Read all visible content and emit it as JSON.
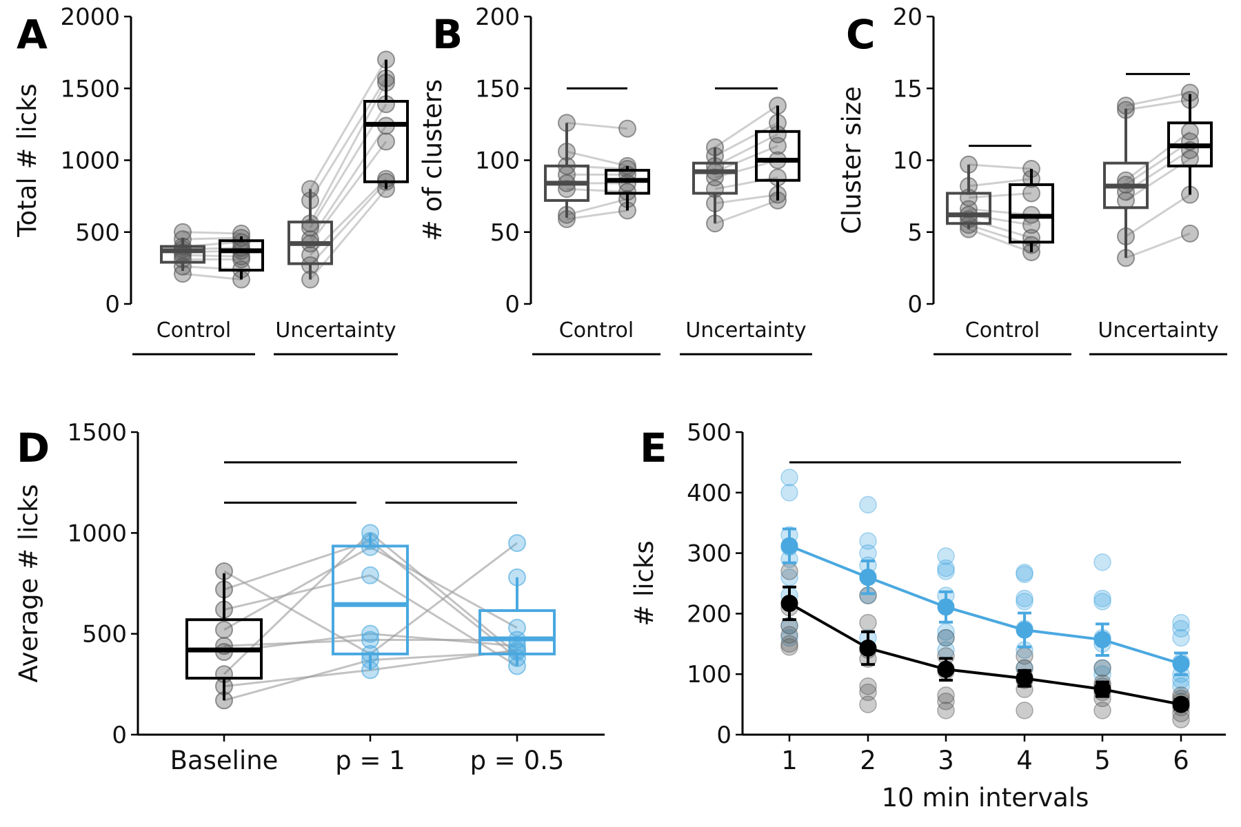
{
  "colors": {
    "control_box": "#4a4a4a",
    "uncertainty_box": "#000000",
    "blue": "#4aa8e0",
    "gray_point": "#555555",
    "pair_line": "#bbbbbb"
  },
  "chart_data": [
    {
      "id": "A",
      "type": "box-paired",
      "panel_letter": "A",
      "ylabel": "Total # licks",
      "ylim": [
        0,
        2000
      ],
      "yticks": [
        0,
        500,
        1000,
        1500,
        2000
      ],
      "groups": [
        {
          "label": "Control",
          "boxes": [
            {
              "q1": 290,
              "median": 370,
              "q3": 400,
              "whisker_low": 230,
              "whisker_high": 460,
              "points": [
                210,
                260,
                310,
                340,
                360,
                380,
                400,
                450,
                500
              ]
            },
            {
              "q1": 235,
              "median": 370,
              "q3": 440,
              "whisker_low": 170,
              "whisker_high": 470,
              "points": [
                170,
                240,
                310,
                330,
                370,
                390,
                430,
                460,
                490
              ]
            }
          ]
        },
        {
          "label": "Uncertainty",
          "boxes": [
            {
              "q1": 280,
              "median": 420,
              "q3": 570,
              "whisker_low": 170,
              "whisker_high": 800,
              "points": [
                170,
                270,
                340,
                420,
                450,
                530,
                560,
                720,
                800
              ]
            },
            {
              "q1": 850,
              "median": 1250,
              "q3": 1410,
              "whisker_low": 800,
              "whisker_high": 1700,
              "points": [
                800,
                850,
                870,
                1130,
                1240,
                1390,
                1540,
                1570,
                1700
              ]
            }
          ]
        }
      ],
      "sig_bars": []
    },
    {
      "id": "B",
      "type": "box-paired",
      "panel_letter": "B",
      "ylabel": "# of clusters",
      "ylim": [
        0,
        200
      ],
      "yticks": [
        0,
        50,
        100,
        150,
        200
      ],
      "groups": [
        {
          "label": "Control",
          "boxes": [
            {
              "q1": 72,
              "median": 84,
              "q3": 96,
              "whisker_low": 60,
              "whisker_high": 126,
              "points": [
                59,
                62,
                80,
                84,
                90,
                96,
                106,
                126
              ]
            },
            {
              "q1": 77,
              "median": 86,
              "q3": 93,
              "whisker_low": 65,
              "whisker_high": 96,
              "points": [
                65,
                73,
                78,
                84,
                90,
                94,
                96,
                122
              ]
            }
          ]
        },
        {
          "label": "Uncertainty",
          "boxes": [
            {
              "q1": 77,
              "median": 92,
              "q3": 98,
              "whisker_low": 56,
              "whisker_high": 109,
              "points": [
                56,
                70,
                80,
                88,
                92,
                96,
                103,
                109
              ]
            },
            {
              "q1": 86,
              "median": 100,
              "q3": 120,
              "whisker_low": 72,
              "whisker_high": 138,
              "points": [
                72,
                76,
                88,
                100,
                110,
                118,
                126,
                138
              ]
            }
          ]
        }
      ],
      "sig_bars": [
        {
          "group": 0,
          "y": 150
        },
        {
          "group": 1,
          "y": 150
        }
      ]
    },
    {
      "id": "C",
      "type": "box-paired",
      "panel_letter": "C",
      "ylabel": "Cluster size",
      "ylim": [
        0,
        20
      ],
      "yticks": [
        0,
        5,
        10,
        15,
        20
      ],
      "groups": [
        {
          "label": "Control",
          "boxes": [
            {
              "q1": 5.6,
              "median": 6.2,
              "q3": 7.7,
              "whisker_low": 5.2,
              "whisker_high": 9.7,
              "points": [
                5.2,
                5.5,
                5.9,
                6.2,
                6.6,
                7.4,
                8.2,
                9.7
              ]
            },
            {
              "q1": 4.3,
              "median": 6.1,
              "q3": 8.3,
              "whisker_low": 3.6,
              "whisker_high": 9.4,
              "points": [
                3.6,
                4.1,
                4.6,
                5.5,
                6.2,
                7.7,
                8.7,
                9.4
              ]
            }
          ]
        },
        {
          "label": "Uncertainty",
          "boxes": [
            {
              "q1": 6.7,
              "median": 8.2,
              "q3": 9.8,
              "whisker_low": 3.2,
              "whisker_high": 13.6,
              "points": [
                3.2,
                4.7,
                7.2,
                7.8,
                8.3,
                8.6,
                13.5,
                13.8
              ]
            },
            {
              "q1": 9.6,
              "median": 11.0,
              "q3": 12.6,
              "whisker_low": 7.6,
              "whisker_high": 14.6,
              "points": [
                4.9,
                7.6,
                10.1,
                10.7,
                11.3,
                12.0,
                14.2,
                14.7
              ]
            }
          ]
        }
      ],
      "sig_bars": [
        {
          "group": 0,
          "y": 11
        },
        {
          "group": 1,
          "y": 16
        }
      ]
    },
    {
      "id": "D",
      "type": "box-paired",
      "panel_letter": "D",
      "ylabel": "Average # licks",
      "ylim": [
        0,
        1500
      ],
      "yticks": [
        0,
        500,
        1000,
        1500
      ],
      "categories": [
        "Baseline",
        "p = 1",
        "p = 0.5"
      ],
      "box_colors": [
        "black",
        "blue",
        "blue"
      ],
      "boxes": [
        {
          "q1": 280,
          "median": 420,
          "q3": 570,
          "whisker_low": 170,
          "whisker_high": 800,
          "points": [
            170,
            240,
            300,
            410,
            440,
            520,
            620,
            720,
            810
          ]
        },
        {
          "q1": 400,
          "median": 645,
          "q3": 935,
          "whisker_low": 320,
          "whisker_high": 1000,
          "points": [
            320,
            370,
            400,
            470,
            500,
            790,
            930,
            960,
            1000
          ]
        },
        {
          "q1": 400,
          "median": 475,
          "q3": 615,
          "whisker_low": 340,
          "whisker_high": 780,
          "points": [
            340,
            380,
            410,
            420,
            440,
            470,
            530,
            780,
            950
          ]
        }
      ],
      "pairs": [
        [
          170,
          370,
          410
        ],
        [
          240,
          320,
          420
        ],
        [
          300,
          1000,
          400
        ],
        [
          410,
          500,
          440
        ],
        [
          440,
          470,
          470
        ],
        [
          520,
          930,
          530
        ],
        [
          620,
          790,
          340
        ],
        [
          720,
          960,
          380
        ],
        [
          810,
          400,
          950
        ]
      ],
      "sig_bars": [
        {
          "from": 0,
          "to": 2,
          "y": 1350
        },
        {
          "from": 0,
          "to": 1,
          "y": 1150
        },
        {
          "from": 1,
          "to": 2,
          "y": 1150
        }
      ]
    },
    {
      "id": "E",
      "type": "line-errorbar",
      "panel_letter": "E",
      "ylabel": "# licks",
      "xlabel": "10 min intervals",
      "ylim": [
        0,
        500
      ],
      "yticks": [
        0,
        100,
        200,
        300,
        400,
        500
      ],
      "x": [
        1,
        2,
        3,
        4,
        5,
        6
      ],
      "series": [
        {
          "color": "blue",
          "mean": [
            312,
            260,
            211,
            173,
            157,
            117
          ],
          "err": [
            28,
            27,
            25,
            28,
            26,
            18
          ],
          "points": [
            [
              160,
              180,
              230,
              260,
              290,
              310,
              330,
              400,
              425
            ],
            [
              160,
              230,
              260,
              280,
              300,
              320,
              380
            ],
            [
              140,
              160,
              170,
              230,
              270,
              275,
              295
            ],
            [
              110,
              140,
              175,
              220,
              225,
              265,
              268
            ],
            [
              100,
              110,
              150,
              160,
              220,
              225,
              285
            ],
            [
              80,
              90,
              100,
              120,
              160,
              175,
              185
            ]
          ]
        },
        {
          "color": "black",
          "mean": [
            217,
            143,
            108,
            93,
            75,
            50
          ],
          "err": [
            27,
            27,
            18,
            13,
            12,
            8
          ],
          "points": [
            [
              145,
              150,
              165,
              180,
              210,
              270
            ],
            [
              50,
              70,
              80,
              125,
              140,
              185,
              230
            ],
            [
              40,
              55,
              65,
              105,
              130,
              160
            ],
            [
              40,
              75,
              90,
              95,
              110,
              130
            ],
            [
              40,
              60,
              70,
              80,
              85,
              110
            ],
            [
              25,
              35,
              45,
              55,
              60,
              65
            ]
          ]
        }
      ],
      "sig_bars": [
        {
          "from": 1,
          "to": 6,
          "y": 450
        }
      ]
    }
  ]
}
